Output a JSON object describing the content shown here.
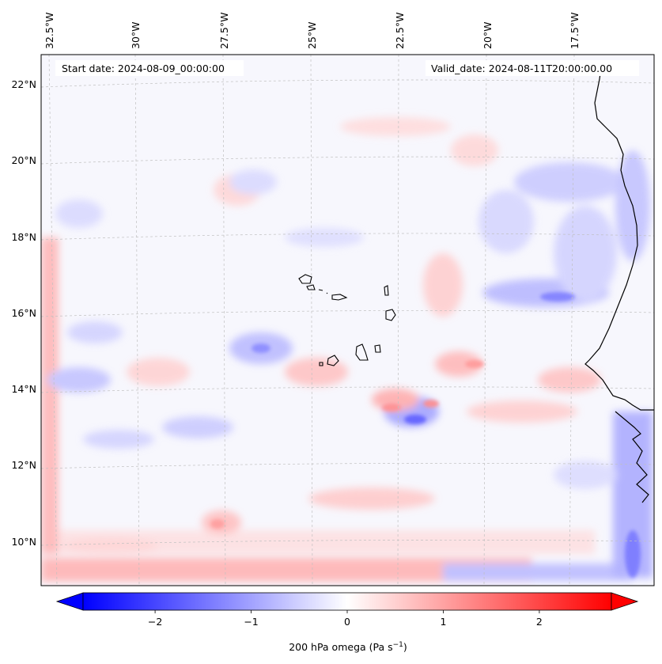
{
  "map": {
    "start_date_text": "Start date: 2024-08-09_00:00:00",
    "valid_date_text": "Valid_date: 2024-08-11T20:00:00.00",
    "lon_labels": [
      "32.5°W",
      "30°W",
      "27.5°W",
      "25°W",
      "22.5°W",
      "20°W",
      "17.5°W"
    ],
    "lat_labels": [
      "22°N",
      "20°N",
      "18°N",
      "16°N",
      "14°N",
      "12°N",
      "10°N"
    ],
    "colors": {
      "negative": "#0000ff",
      "neutral": "#ffffff",
      "positive": "#ff0000",
      "coast": "#000000",
      "grid": "#c0c0c0"
    }
  },
  "colorbar": {
    "label_prefix": "200 hPa omega (Pa s",
    "label_exp": "−1",
    "label_suffix": ")",
    "range": [
      -2.75,
      2.75
    ],
    "ticks": [
      {
        "value": -2,
        "label": "−2"
      },
      {
        "value": -1,
        "label": "−1"
      },
      {
        "value": 0,
        "label": "0"
      },
      {
        "value": 1,
        "label": "1"
      },
      {
        "value": 2,
        "label": "2"
      }
    ]
  }
}
